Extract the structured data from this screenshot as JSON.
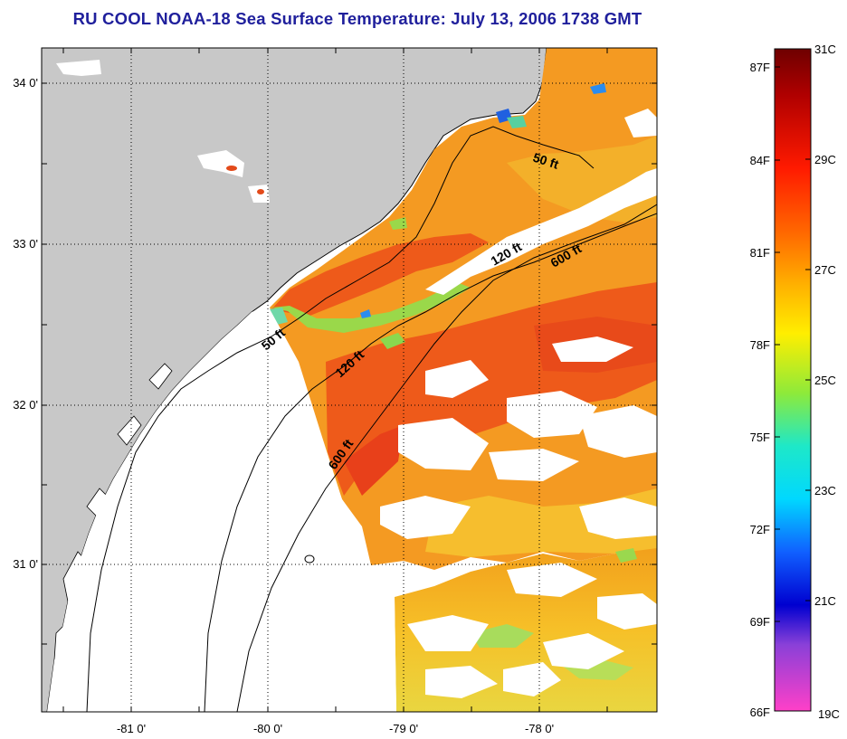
{
  "title": "RU COOL  NOAA-18  Sea Surface Temperature:  July 13, 2006 1738 GMT",
  "axes": {
    "lat_ticks": [
      "34 0'",
      "33 0'",
      "32 0'",
      "31 0'"
    ],
    "lon_ticks": [
      "-81 0'",
      "-80 0'",
      "-79 0'",
      "-78 0'"
    ]
  },
  "contours": [
    {
      "label": "50 ft"
    },
    {
      "label": "50 ft"
    },
    {
      "label": "120 ft"
    },
    {
      "label": "120 ft"
    },
    {
      "label": "600 ft"
    },
    {
      "label": "600 ft"
    }
  ],
  "colorbar": {
    "fahrenheit": [
      "87F",
      "84F",
      "81F",
      "78F",
      "75F",
      "72F",
      "69F",
      "66F"
    ],
    "celsius": [
      "31C",
      "29C",
      "27C",
      "25C",
      "23C",
      "21C",
      "19C"
    ]
  },
  "colors": {
    "land": "#c8c8c8",
    "cloud": "#ffffff",
    "title": "#1f1f9c",
    "sst_warm": "#f06a1e",
    "sst_mid": "#f5a51e"
  }
}
